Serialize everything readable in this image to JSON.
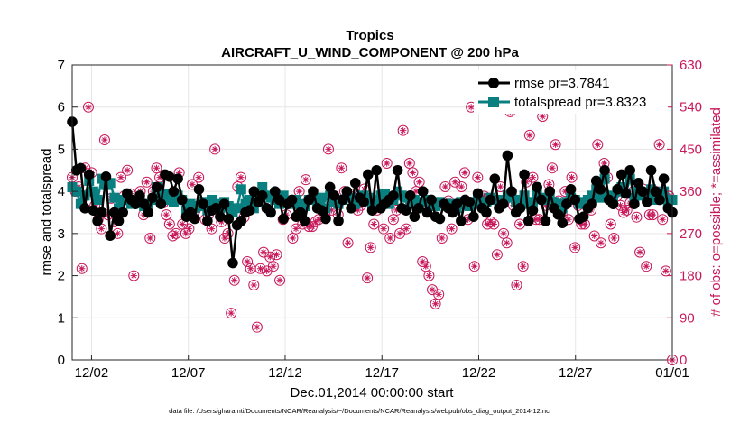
{
  "chart_data": {
    "type": "line",
    "title": "Tropics",
    "subtitle": "AIRCRAFT_U_WIND_COMPONENT @ 200 hPa",
    "xlabel": "Dec.01,2014 00:00:00 start",
    "ylabel_left": "rmse and totalspread",
    "ylabel_right": "# of obs: o=possible; *=assimilated",
    "xlim": [
      0,
      31
    ],
    "ylim_left": [
      0,
      7
    ],
    "ylim_right": [
      0,
      630
    ],
    "x_ticks": [
      1,
      6,
      11,
      16,
      21,
      26,
      31
    ],
    "x_tick_labels": [
      "12/02",
      "12/07",
      "12/12",
      "12/17",
      "12/22",
      "12/27",
      "01/01"
    ],
    "y_ticks_left": [
      "0",
      "1",
      "2",
      "3",
      "4",
      "5",
      "6",
      "7"
    ],
    "y_ticks_right": [
      "0",
      "90",
      "180",
      "270",
      "360",
      "450",
      "540",
      "630"
    ],
    "grid": true,
    "legend_position": "top-right",
    "footnote": "data file: /Users/gharamti/Documents/NCAR/Reanalysis/~/Documents/NCAR/Reanalysis/webpub/obs_diag_output_2014-12.nc",
    "colors": {
      "rmse": "#000000",
      "totalspread": "#0a7f7f",
      "obs": "#c8185a",
      "grid": "#e6e6e6"
    },
    "series": [
      {
        "name": "rmse",
        "legend_label": "rmse pr=3.7841",
        "axis": "left",
        "values": [
          5.65,
          4.5,
          4.55,
          3.6,
          4.4,
          3.55,
          3.3,
          3.5,
          4.35,
          2.95,
          3.5,
          3.3,
          3.5,
          3.95,
          3.8,
          3.7,
          3.9,
          3.7,
          3.5,
          3.85,
          4.1,
          3.7,
          4.4,
          4.35,
          4.0,
          4.3,
          3.8,
          3.4,
          3.5,
          3.35,
          4.05,
          3.7,
          3.3,
          3.55,
          3.6,
          3.4,
          3.7,
          3.35,
          2.3,
          3.2,
          3.3,
          3.5,
          3.55,
          4.0,
          3.75,
          3.9,
          3.6,
          3.5,
          4.0,
          3.8,
          3.35,
          3.7,
          3.8,
          3.4,
          3.5,
          3.3,
          3.8,
          4.0,
          3.6,
          3.55,
          3.35,
          4.1,
          3.9,
          3.3,
          3.8,
          4.0,
          3.6,
          4.2,
          3.85,
          3.75,
          4.4,
          3.55,
          4.5,
          3.6,
          3.7,
          3.8,
          3.9,
          4.5,
          3.6,
          3.55,
          3.9,
          3.4,
          3.6,
          4.0,
          3.5,
          3.8,
          3.4,
          3.35,
          3.7,
          3.6,
          3.5,
          3.7,
          3.3,
          3.8,
          3.75,
          3.4,
          3.95,
          3.6,
          3.5,
          3.8,
          4.3,
          3.6,
          3.7,
          4.85,
          4.0,
          3.5,
          3.6,
          4.4,
          3.3,
          3.55,
          4.1,
          3.8,
          3.3,
          4.0,
          3.6,
          3.45,
          3.25,
          3.7,
          4.05,
          3.8,
          3.35,
          3.4,
          3.6,
          3.7,
          4.25,
          4.05,
          4.5,
          3.8,
          3.7,
          4.05,
          4.4,
          3.95,
          4.5,
          3.7,
          4.2,
          4.0,
          3.75,
          4.5,
          4.0,
          3.8,
          4.3,
          3.6,
          3.5
        ]
      },
      {
        "name": "totalspread",
        "legend_label": "totalspread pr=3.8323",
        "axis": "left",
        "values": [
          4.1,
          4.0,
          3.7,
          3.9,
          4.25,
          4.0,
          3.8,
          4.3,
          4.15,
          4.2,
          3.85,
          3.6,
          3.8,
          3.9,
          3.7,
          3.75,
          3.8,
          3.65,
          3.7,
          3.8,
          4.1,
          3.85,
          3.95,
          3.8,
          3.75,
          3.9,
          3.8,
          3.55,
          3.7,
          3.6,
          3.65,
          3.75,
          3.55,
          3.8,
          3.7,
          3.6,
          3.75,
          3.65,
          3.5,
          3.6,
          4.05,
          3.7,
          3.8,
          3.6,
          3.75,
          4.1,
          3.9,
          3.85,
          3.8,
          3.7,
          3.9,
          3.75,
          3.7,
          3.8,
          3.7,
          3.65,
          3.8,
          3.9,
          3.7,
          3.85,
          3.6,
          3.9,
          3.75,
          3.7,
          3.8,
          3.95,
          3.85,
          3.7,
          3.8,
          3.9,
          3.85,
          3.7,
          3.8,
          3.9,
          3.95,
          3.7,
          3.8,
          4.0,
          3.9,
          3.85,
          3.7,
          3.8,
          3.65,
          3.75,
          3.8,
          3.7,
          3.65,
          3.75,
          3.7,
          3.65,
          3.7,
          3.6,
          3.75,
          3.7,
          3.65,
          3.75,
          3.8,
          3.7,
          3.75,
          3.85,
          3.8,
          3.7,
          3.8,
          3.9,
          3.85,
          3.75,
          3.8,
          3.9,
          3.7,
          3.75,
          3.95,
          3.85,
          3.8,
          3.9,
          3.75,
          3.7,
          3.6,
          3.75,
          3.85,
          3.8,
          3.7,
          3.75,
          3.8,
          3.9,
          4.05,
          3.85,
          4.3,
          3.9,
          3.8,
          4.0,
          4.1,
          3.95,
          4.3,
          3.85,
          4.0,
          3.9,
          3.85,
          4.05,
          3.8,
          3.9,
          4.0,
          3.75,
          3.8
        ]
      },
      {
        "name": "obs_possible_and_assimilated",
        "legend_label": "",
        "axis": "right",
        "values": [
          390,
          360,
          370,
          195,
          410,
          540,
          400,
          330,
          300,
          280,
          470,
          310,
          345,
          295,
          270,
          390,
          350,
          405,
          355,
          180,
          340,
          360,
          310,
          380,
          260,
          360,
          410,
          390,
          335,
          310,
          290,
          265,
          270,
          400,
          290,
          270,
          280,
          375,
          320,
          390,
          330,
          300,
          310,
          280,
          450,
          320,
          295,
          260,
          270,
          100,
          170,
          370,
          390,
          305,
          210,
          195,
          160,
          70,
          195,
          230,
          190,
          220,
          200,
          225,
          170,
          300,
          310,
          340,
          260,
          280,
          360,
          290,
          385,
          285,
          285,
          295,
          300,
          325,
          310,
          450,
          320,
          340,
          310,
          410,
          360,
          250,
          340,
          355,
          320,
          330,
          365,
          175,
          240,
          290,
          320,
          330,
          280,
          420,
          260,
          300,
          320,
          270,
          490,
          280,
          420,
          400,
          360,
          380,
          210,
          200,
          180,
          150,
          120,
          140,
          260,
          370,
          340,
          280,
          380,
          330,
          370,
          400,
          300,
          540,
          200,
          390,
          330,
          350,
          290,
          295,
          290,
          225,
          370,
          270,
          250,
          530,
          330,
          160,
          290,
          200,
          380,
          480,
          390,
          300,
          300,
          520,
          330,
          375,
          410,
          460,
          340,
          310,
          360,
          300,
          390,
          240,
          330,
          290,
          290,
          330,
          320,
          265,
          460,
          250,
          420,
          390,
          290,
          260,
          350,
          330,
          315,
          320,
          335,
          360,
          305,
          230,
          365,
          200,
          310,
          310,
          360,
          460,
          300,
          190,
          350,
          0
        ]
      }
    ]
  }
}
